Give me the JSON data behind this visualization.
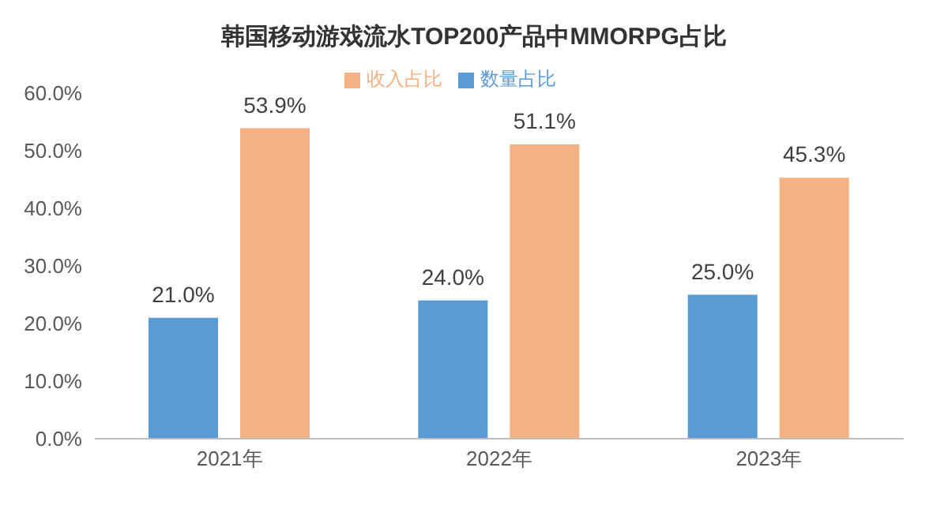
{
  "chart_data": {
    "type": "bar",
    "title": "韩国移动游戏流水TOP200产品中MMORPG占比",
    "categories": [
      "2021年",
      "2022年",
      "2023年"
    ],
    "series": [
      {
        "name": "数量占比",
        "color": "#5b9bd5",
        "values": [
          21.0,
          24.0,
          25.0
        ],
        "value_labels": [
          "21.0%",
          "24.0%",
          "25.0%"
        ]
      },
      {
        "name": "收入占比",
        "color": "#f4b183",
        "values": [
          53.9,
          51.1,
          45.3
        ],
        "value_labels": [
          "53.9%",
          "51.1%",
          "45.3%"
        ]
      }
    ],
    "ylim": [
      0,
      60
    ],
    "yticks": [
      {
        "value": 0,
        "label": "0.0%"
      },
      {
        "value": 10,
        "label": "10.0%"
      },
      {
        "value": 20,
        "label": "20.0%"
      },
      {
        "value": 30,
        "label": "30.0%"
      },
      {
        "value": 40,
        "label": "40.0%"
      },
      {
        "value": 50,
        "label": "50.0%"
      },
      {
        "value": 60,
        "label": "60.0%"
      }
    ],
    "legend": "top",
    "grid": false
  }
}
